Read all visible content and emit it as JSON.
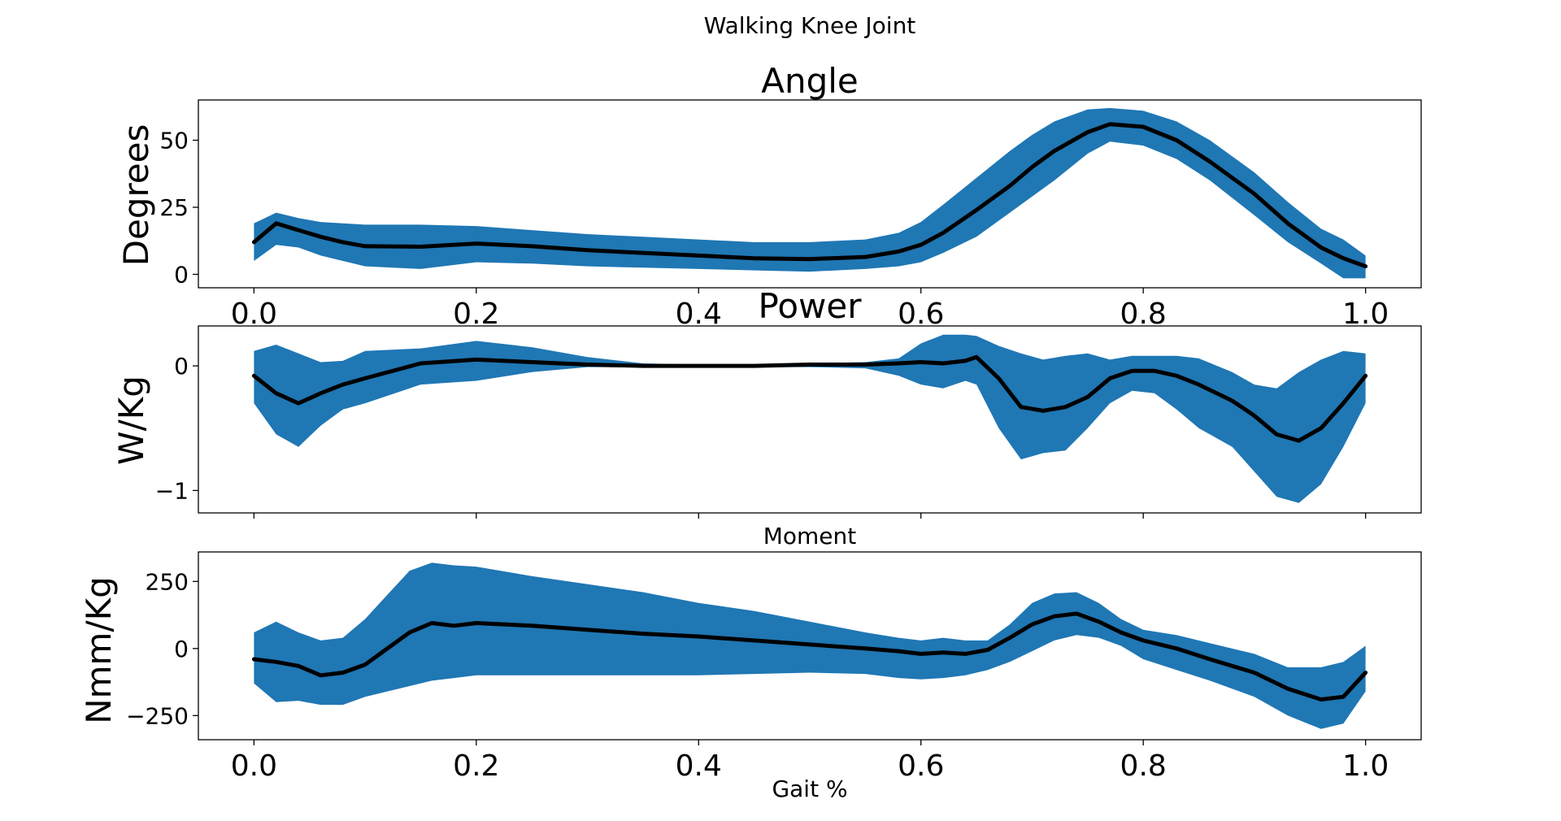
{
  "figure": {
    "suptitle": "Walking Knee Joint",
    "xlabel": "Gait %",
    "band_color": "#1f77b4",
    "line_color": "#000000"
  },
  "chart_data": [
    {
      "type": "line",
      "title": "Angle",
      "ylabel": "Degrees",
      "xlim": [
        -0.05,
        1.05
      ],
      "ylim": [
        -5,
        65
      ],
      "yticks": [
        0,
        25,
        50
      ],
      "ytick_labels": [
        "0",
        "25",
        "50"
      ],
      "xticks": [
        0.0,
        0.2,
        0.4,
        0.6,
        0.8,
        1.0
      ],
      "xtick_labels": [
        "0.0",
        "0.2",
        "0.4",
        "0.6",
        "0.8",
        "1.0"
      ],
      "x": [
        0.0,
        0.02,
        0.04,
        0.06,
        0.08,
        0.1,
        0.15,
        0.2,
        0.25,
        0.3,
        0.35,
        0.4,
        0.45,
        0.5,
        0.55,
        0.58,
        0.6,
        0.62,
        0.65,
        0.68,
        0.7,
        0.72,
        0.75,
        0.77,
        0.8,
        0.83,
        0.86,
        0.9,
        0.93,
        0.96,
        0.98,
        1.0
      ],
      "mean": [
        12,
        19,
        16.5,
        14,
        12,
        10.5,
        10.3,
        11.5,
        10.5,
        9,
        8,
        7,
        6,
        5.7,
        6.5,
        8.5,
        11,
        15.5,
        24,
        33,
        40,
        46,
        53,
        56,
        55,
        50,
        42,
        30,
        19,
        10,
        6,
        3
      ],
      "upper": [
        19,
        23,
        21,
        19.5,
        19,
        18.5,
        18.5,
        18,
        16.5,
        15,
        14,
        13,
        12,
        12,
        13,
        15.5,
        19.5,
        26,
        36,
        46,
        52,
        57,
        61.5,
        62,
        61,
        57,
        50,
        38,
        27,
        17,
        13,
        7
      ],
      "lower": [
        5,
        11,
        10,
        7,
        5,
        3,
        2,
        4.5,
        4,
        3,
        2.5,
        2,
        1.5,
        1,
        2,
        3,
        4.5,
        8,
        14,
        23,
        29,
        35,
        45,
        49.5,
        48,
        43,
        35,
        22,
        12,
        4,
        -1.5,
        -1.5
      ]
    },
    {
      "type": "line",
      "title": "Power",
      "ylabel": "W/Kg",
      "xlim": [
        -0.05,
        1.05
      ],
      "ylim": [
        -1.18,
        0.32
      ],
      "yticks": [
        -1,
        0
      ],
      "ytick_labels": [
        "−1",
        "0"
      ],
      "xticks": [
        0.0,
        0.2,
        0.4,
        0.6,
        0.8,
        1.0
      ],
      "xtick_labels": [
        "",
        "",
        "",
        "",
        "",
        ""
      ],
      "x": [
        0.0,
        0.02,
        0.04,
        0.06,
        0.08,
        0.1,
        0.15,
        0.2,
        0.25,
        0.3,
        0.35,
        0.4,
        0.45,
        0.5,
        0.55,
        0.58,
        0.6,
        0.62,
        0.64,
        0.65,
        0.67,
        0.69,
        0.71,
        0.73,
        0.75,
        0.77,
        0.79,
        0.81,
        0.83,
        0.85,
        0.88,
        0.9,
        0.92,
        0.94,
        0.96,
        0.98,
        1.0
      ],
      "mean": [
        -0.08,
        -0.22,
        -0.3,
        -0.22,
        -0.15,
        -0.1,
        0.02,
        0.05,
        0.03,
        0.01,
        0.0,
        0.0,
        0.0,
        0.01,
        0.01,
        0.02,
        0.03,
        0.02,
        0.04,
        0.07,
        -0.1,
        -0.33,
        -0.36,
        -0.33,
        -0.25,
        -0.1,
        -0.04,
        -0.04,
        -0.08,
        -0.15,
        -0.28,
        -0.4,
        -0.55,
        -0.6,
        -0.5,
        -0.3,
        -0.08
      ],
      "upper": [
        0.12,
        0.17,
        0.1,
        0.03,
        0.04,
        0.12,
        0.14,
        0.2,
        0.15,
        0.07,
        0.02,
        0.01,
        0.01,
        0.02,
        0.03,
        0.06,
        0.18,
        0.25,
        0.25,
        0.24,
        0.16,
        0.1,
        0.05,
        0.08,
        0.1,
        0.05,
        0.08,
        0.08,
        0.08,
        0.06,
        -0.05,
        -0.15,
        -0.18,
        -0.05,
        0.05,
        0.12,
        0.1
      ],
      "lower": [
        -0.3,
        -0.55,
        -0.65,
        -0.48,
        -0.35,
        -0.3,
        -0.15,
        -0.12,
        -0.05,
        -0.01,
        -0.01,
        -0.01,
        -0.01,
        -0.01,
        -0.02,
        -0.08,
        -0.15,
        -0.18,
        -0.12,
        -0.15,
        -0.5,
        -0.75,
        -0.7,
        -0.68,
        -0.5,
        -0.3,
        -0.2,
        -0.22,
        -0.35,
        -0.5,
        -0.65,
        -0.85,
        -1.05,
        -1.1,
        -0.95,
        -0.65,
        -0.3
      ]
    },
    {
      "type": "line",
      "title": "Moment",
      "ylabel": "Nmm/Kg",
      "xlabel": "Gait %",
      "xlim": [
        -0.05,
        1.05
      ],
      "ylim": [
        -340,
        360
      ],
      "yticks": [
        -250,
        0,
        250
      ],
      "ytick_labels": [
        "−250",
        "0",
        "250"
      ],
      "xticks": [
        0.0,
        0.2,
        0.4,
        0.6,
        0.8,
        1.0
      ],
      "xtick_labels": [
        "0.0",
        "0.2",
        "0.4",
        "0.6",
        "0.8",
        "1.0"
      ],
      "x": [
        0.0,
        0.02,
        0.04,
        0.06,
        0.08,
        0.1,
        0.12,
        0.14,
        0.16,
        0.18,
        0.2,
        0.25,
        0.3,
        0.35,
        0.4,
        0.45,
        0.5,
        0.55,
        0.58,
        0.6,
        0.62,
        0.64,
        0.66,
        0.68,
        0.7,
        0.72,
        0.74,
        0.76,
        0.78,
        0.8,
        0.83,
        0.86,
        0.9,
        0.93,
        0.96,
        0.98,
        1.0
      ],
      "mean": [
        -40,
        -50,
        -65,
        -100,
        -90,
        -60,
        0,
        60,
        95,
        85,
        95,
        85,
        70,
        55,
        45,
        30,
        15,
        0,
        -10,
        -20,
        -15,
        -20,
        -5,
        40,
        90,
        120,
        130,
        100,
        60,
        30,
        0,
        -40,
        -90,
        -150,
        -190,
        -180,
        -90
      ],
      "upper": [
        60,
        100,
        60,
        30,
        40,
        110,
        200,
        290,
        320,
        310,
        305,
        270,
        240,
        210,
        170,
        140,
        100,
        60,
        40,
        30,
        40,
        30,
        30,
        90,
        170,
        205,
        210,
        170,
        110,
        70,
        50,
        20,
        -20,
        -70,
        -70,
        -50,
        10
      ],
      "lower": [
        -130,
        -200,
        -195,
        -210,
        -210,
        -180,
        -160,
        -140,
        -120,
        -110,
        -100,
        -100,
        -100,
        -100,
        -100,
        -95,
        -90,
        -95,
        -110,
        -115,
        -110,
        -100,
        -80,
        -50,
        -10,
        30,
        50,
        40,
        10,
        -40,
        -80,
        -120,
        -180,
        -250,
        -300,
        -280,
        -160
      ]
    }
  ]
}
